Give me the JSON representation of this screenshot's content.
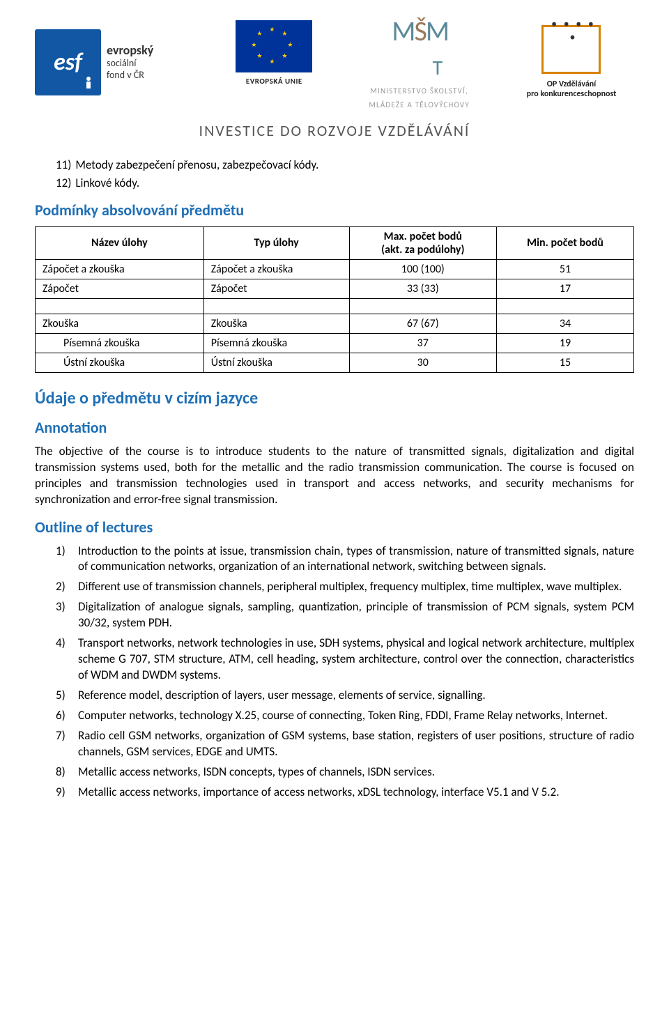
{
  "logos": {
    "esf": {
      "mark": "esf",
      "line1": "evropský",
      "line2": "sociální",
      "line3": "fond v ČR"
    },
    "eu": {
      "label": "EVROPSKÁ UNIE"
    },
    "msmt": {
      "line1": "MINISTERSTVO ŠKOLSTVÍ,",
      "line2": "MLÁDEŽE A TĚLOVÝCHOVY"
    },
    "op": {
      "line1": "OP Vzdělávání",
      "line2": "pro konkurenceschopnost"
    },
    "slogan": "INVESTICE DO ROZVOJE VZDĚLÁVÁNÍ"
  },
  "numbered_cz": [
    {
      "num": "11)",
      "text": "Metody zabezpečení přenosu, zabezpečovací kódy."
    },
    {
      "num": "12)",
      "text": "Linkové kódy."
    }
  ],
  "sec_podminky_title": "Podmínky absolvování předmětu",
  "table": {
    "headers": {
      "c1": "Název úlohy",
      "c2": "Typ úlohy",
      "c3": "Max. počet bodů\n(akt. za podúlohy)",
      "c4": "Min. počet bodů"
    },
    "rows": [
      {
        "c1": "Zápočet a zkouška",
        "c2": "Zápočet a zkouška",
        "c3": "100 (100)",
        "c4": "51"
      },
      {
        "c1": "Zápočet",
        "c2": "Zápočet",
        "c3": "33 (33)",
        "c4": "17"
      }
    ],
    "rows2": [
      {
        "c1": "Zkouška",
        "c2": "Zkouška",
        "c3": "67 (67)",
        "c4": "34",
        "indent": 0
      },
      {
        "c1": "Písemná zkouška",
        "c2": "Písemná zkouška",
        "c3": "37",
        "c4": "19",
        "indent": 1
      },
      {
        "c1": "Ústní zkouška",
        "c2": "Ústní zkouška",
        "c3": "30",
        "c4": "15",
        "indent": 1
      }
    ]
  },
  "sec_udaje_title": "Údaje o předmětu v cizím jazyce",
  "annotation_title": "Annotation",
  "annotation_body": "The objective of the course is to introduce students to the nature of transmitted signals, digitalization and digital transmission systems used, both for the metallic and the radio transmission communication. The course is focused on principles and transmission technologies used in transport and access networks, and security mechanisms for synchronization and error-free signal transmission.",
  "outline_title": "Outline of lectures",
  "outline_items": [
    {
      "num": "1)",
      "text": "Introduction to the points at issue,  transmission chain,  types of transmission, nature of transmitted signals, nature of communication networks, organization of an international network, switching between signals."
    },
    {
      "num": "2)",
      "text": "Different use of transmission channels,  peripheral multiplex, frequency multiplex, time multiplex, wave multiplex."
    },
    {
      "num": "3)",
      "text": "Digitalization of analogue signals, sampling, quantization, principle of transmission of PCM signals, system PCM 30/32, system PDH."
    },
    {
      "num": "4)",
      "text": "Transport networks, network technologies in use, SDH systems, physical and logical network architecture, multiplex scheme G 707, STM structure, ATM, cell heading, system architecture, control over the connection, characteristics of WDM and DWDM systems."
    },
    {
      "num": "5)",
      "text": "Reference model, description of layers, user message, elements of service, signalling."
    },
    {
      "num": "6)",
      "text": "Computer networks, technology X.25, course of connecting, Token Ring, FDDI, Frame Relay networks, Internet."
    },
    {
      "num": "7)",
      "text": "Radio cell GSM networks, organization of  GSM systems, base station, registers of user positions, structure of  radio channels,  GSM services, EDGE and UMTS."
    },
    {
      "num": "8)",
      "text": "Metallic access networks,  ISDN concepts, types of channels,  ISDN services."
    },
    {
      "num": "9)",
      "text": "Metallic access networks, importance of access networks,  xDSL technology, interface V5.1 and V 5.2."
    }
  ],
  "colors": {
    "heading": "#1f6fb5",
    "esf": "#1157a3",
    "eu_bg": "#003399",
    "eu_star": "#ffcc00",
    "op_border": "#d98100"
  }
}
